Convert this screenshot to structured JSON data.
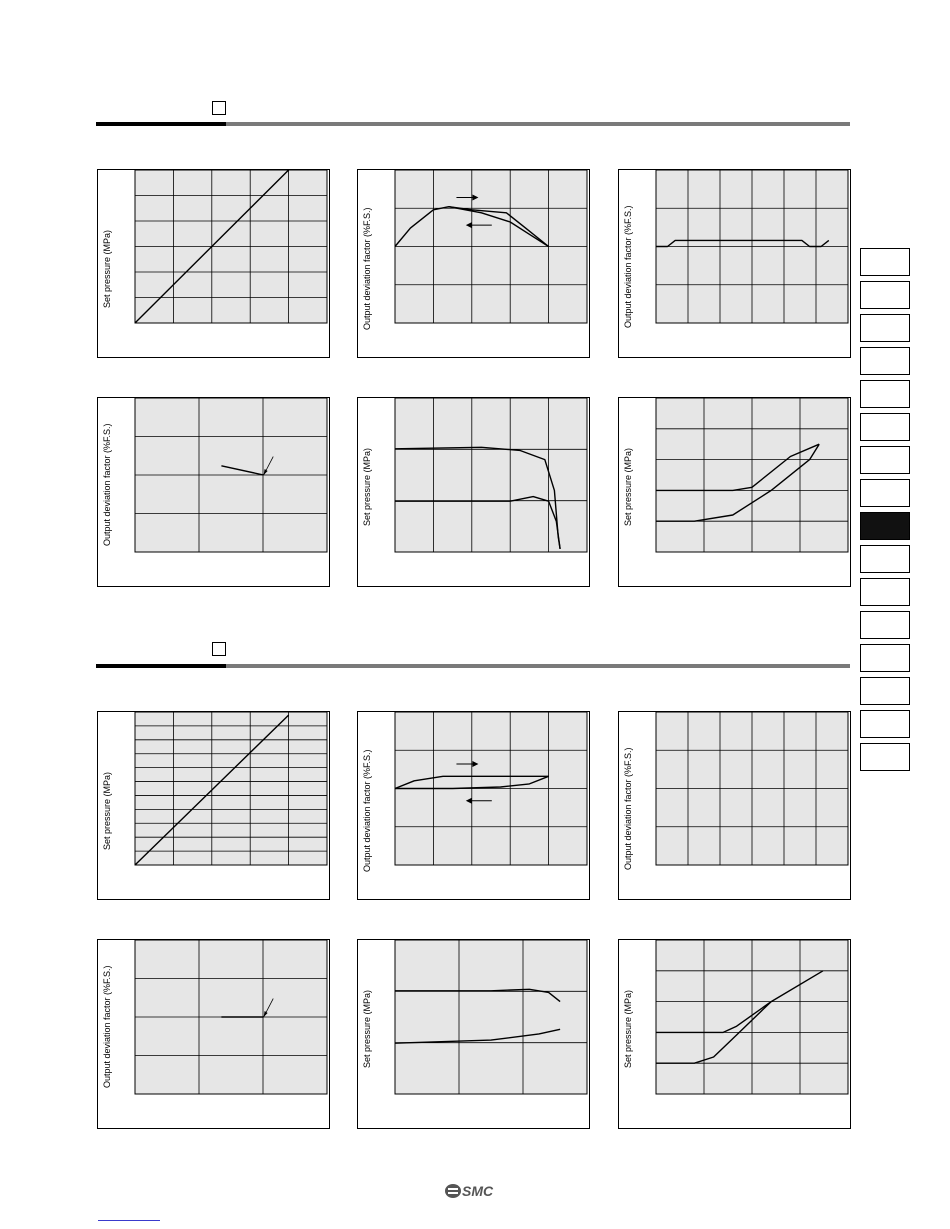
{
  "colors": {
    "grid_fill": "#e6e6e6",
    "rule_gray": "#7a7a7a",
    "line": "#000000",
    "tab_active": "#111111"
  },
  "brand": {
    "logo_text": "SMC"
  },
  "tabs": {
    "count": 16,
    "active_index": 8
  },
  "chart_data": [
    {
      "id": "s1-a",
      "type": "line",
      "ylabel": "Set pressure (MPa)",
      "grid": {
        "cols": 5,
        "rows": 6
      },
      "series": [
        {
          "values": [
            [
              0,
              0
            ],
            [
              0.8,
              1
            ]
          ]
        }
      ]
    },
    {
      "id": "s1-b",
      "type": "line",
      "ylabel": "Output deviation factor (%F.S.)",
      "grid": {
        "cols": 5,
        "rows": 4
      },
      "series": [
        {
          "direction": "increasing",
          "values": [
            [
              0,
              0.5
            ],
            [
              0.08,
              0.62
            ],
            [
              0.2,
              0.74
            ],
            [
              0.28,
              0.76
            ],
            [
              0.4,
              0.74
            ],
            [
              0.58,
              0.72
            ],
            [
              0.68,
              0.62
            ],
            [
              0.8,
              0.5
            ]
          ]
        },
        {
          "direction": "decreasing",
          "values": [
            [
              0.28,
              0.76
            ],
            [
              0.45,
              0.72
            ],
            [
              0.6,
              0.66
            ],
            [
              0.7,
              0.58
            ],
            [
              0.8,
              0.5
            ]
          ]
        }
      ],
      "arrows": [
        "right",
        "left"
      ]
    },
    {
      "id": "s1-c",
      "type": "line",
      "ylabel": "Output deviation factor (%F.S.)",
      "grid": {
        "cols": 6,
        "rows": 4
      },
      "series": [
        {
          "values": [
            [
              0,
              0.5
            ],
            [
              0.06,
              0.5
            ],
            [
              0.1,
              0.54
            ],
            [
              0.15,
              0.54
            ],
            [
              0.5,
              0.54
            ],
            [
              0.76,
              0.54
            ],
            [
              0.8,
              0.5
            ],
            [
              0.86,
              0.5
            ],
            [
              0.9,
              0.54
            ]
          ]
        }
      ]
    },
    {
      "id": "s1-d",
      "type": "line",
      "ylabel": "Output deviation factor (%F.S.)",
      "grid": {
        "cols": 3,
        "rows": 4
      },
      "series": [
        {
          "values": [
            [
              0.45,
              0.56
            ],
            [
              0.67,
              0.5
            ]
          ]
        }
      ],
      "pointer": {
        "at": [
          0.67,
          0.5
        ],
        "from": [
          0.72,
          0.62
        ]
      }
    },
    {
      "id": "s1-e",
      "type": "line",
      "ylabel": "Set pressure (MPa)",
      "grid": {
        "cols": 5,
        "rows": 3
      },
      "series": [
        {
          "values": [
            [
              0,
              0.33
            ],
            [
              0.6,
              0.33
            ],
            [
              0.72,
              0.36
            ],
            [
              0.8,
              0.33
            ],
            [
              0.84,
              0.2
            ],
            [
              0.86,
              0.02
            ]
          ]
        },
        {
          "values": [
            [
              0,
              0.67
            ],
            [
              0.45,
              0.68
            ],
            [
              0.65,
              0.66
            ],
            [
              0.78,
              0.6
            ],
            [
              0.83,
              0.4
            ],
            [
              0.85,
              0.1
            ],
            [
              0.86,
              0.02
            ]
          ]
        }
      ]
    },
    {
      "id": "s1-f",
      "type": "line",
      "ylabel": "Set pressure (MPa)",
      "grid": {
        "cols": 4,
        "rows": 5
      },
      "series": [
        {
          "values": [
            [
              0,
              0.2
            ],
            [
              0.2,
              0.2
            ],
            [
              0.4,
              0.24
            ],
            [
              0.6,
              0.4
            ],
            [
              0.8,
              0.6
            ],
            [
              0.85,
              0.7
            ]
          ]
        },
        {
          "values": [
            [
              0,
              0.4
            ],
            [
              0.4,
              0.4
            ],
            [
              0.5,
              0.42
            ],
            [
              0.7,
              0.62
            ],
            [
              0.85,
              0.7
            ]
          ]
        }
      ]
    },
    {
      "id": "s2-a",
      "type": "line",
      "ylabel": "Set pressure (MPa)",
      "grid": {
        "cols": 5,
        "rows": 11
      },
      "series": [
        {
          "values": [
            [
              0,
              0
            ],
            [
              0.8,
              0.98
            ]
          ]
        }
      ]
    },
    {
      "id": "s2-b",
      "type": "line",
      "ylabel": "Output deviation factor (%F.S.)",
      "grid": {
        "cols": 5,
        "rows": 4
      },
      "series": [
        {
          "direction": "increasing",
          "values": [
            [
              0,
              0.5
            ],
            [
              0.1,
              0.55
            ],
            [
              0.25,
              0.58
            ],
            [
              0.5,
              0.58
            ],
            [
              0.8,
              0.58
            ]
          ]
        },
        {
          "direction": "decreasing",
          "values": [
            [
              0,
              0.5
            ],
            [
              0.3,
              0.5
            ],
            [
              0.55,
              0.51
            ],
            [
              0.7,
              0.53
            ],
            [
              0.8,
              0.58
            ]
          ]
        }
      ],
      "arrows": [
        "right",
        "left"
      ]
    },
    {
      "id": "s2-c",
      "type": "line",
      "ylabel": "Output deviation factor (%F.S.)",
      "grid": {
        "cols": 6,
        "rows": 4
      },
      "series": []
    },
    {
      "id": "s2-d",
      "type": "line",
      "ylabel": "Output deviation factor (%F.S.)",
      "grid": {
        "cols": 3,
        "rows": 4
      },
      "series": [
        {
          "values": [
            [
              0.45,
              0.5
            ],
            [
              0.67,
              0.5
            ]
          ]
        }
      ],
      "pointer": {
        "at": [
          0.67,
          0.5
        ],
        "from": [
          0.72,
          0.62
        ]
      }
    },
    {
      "id": "s2-e",
      "type": "line",
      "ylabel": "Set pressure (MPa)",
      "grid": {
        "cols": 3,
        "rows": 3
      },
      "series": [
        {
          "values": [
            [
              0,
              0.67
            ],
            [
              0.5,
              0.67
            ],
            [
              0.7,
              0.68
            ],
            [
              0.8,
              0.66
            ],
            [
              0.86,
              0.6
            ]
          ]
        },
        {
          "values": [
            [
              0,
              0.33
            ],
            [
              0.5,
              0.35
            ],
            [
              0.75,
              0.39
            ],
            [
              0.86,
              0.42
            ]
          ]
        }
      ]
    },
    {
      "id": "s2-f",
      "type": "line",
      "ylabel": "Set pressure (MPa)",
      "grid": {
        "cols": 4,
        "rows": 5
      },
      "series": [
        {
          "values": [
            [
              0,
              0.2
            ],
            [
              0.2,
              0.2
            ],
            [
              0.3,
              0.24
            ],
            [
              0.4,
              0.36
            ],
            [
              0.6,
              0.6
            ],
            [
              0.87,
              0.8
            ]
          ]
        },
        {
          "values": [
            [
              0,
              0.4
            ],
            [
              0.35,
              0.4
            ],
            [
              0.42,
              0.44
            ],
            [
              0.6,
              0.6
            ]
          ]
        }
      ]
    }
  ]
}
